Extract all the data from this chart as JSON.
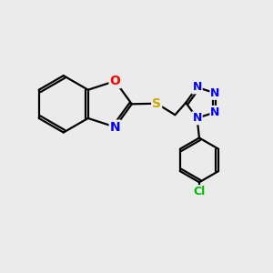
{
  "bg_color": "#ebebeb",
  "bond_color": "#000000",
  "bond_width": 1.6,
  "atom_colors": {
    "O": "#ff0000",
    "N": "#0000ff",
    "S": "#ccaa00",
    "Cl": "#00bb00",
    "C": "#000000"
  },
  "font_size_atom": 10,
  "font_size_cl": 9,
  "font_size_n": 9
}
